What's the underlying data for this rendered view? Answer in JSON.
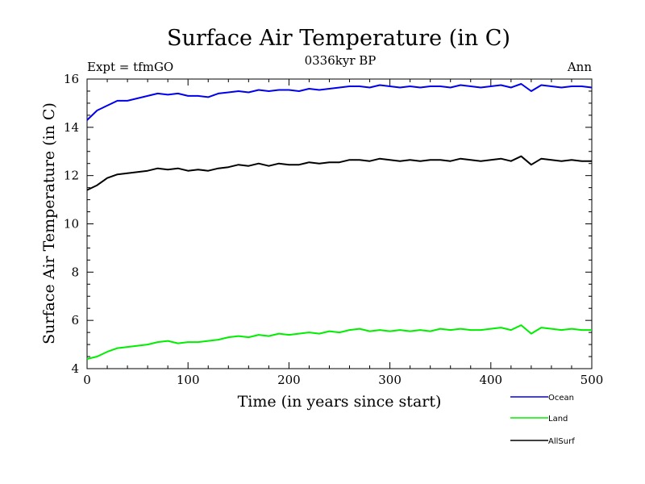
{
  "title": "Surface Air Temperature (in C)",
  "subtitle_left": "Expt = tfmGO",
  "subtitle_center": "0336kyr BP",
  "subtitle_right": "Ann",
  "chart_data": {
    "type": "line",
    "xlabel": "Time (in years since start)",
    "ylabel": "Surface Air Temperature (in C)",
    "xlim": [
      0,
      500
    ],
    "ylim": [
      4,
      16
    ],
    "xticks": [
      0,
      100,
      200,
      300,
      400,
      500
    ],
    "yticks": [
      4,
      6,
      8,
      10,
      12,
      14,
      16
    ],
    "grid": false,
    "legend_position": "bottom-right, below plot",
    "series": [
      {
        "name": "Ocean",
        "color": "#0000ee",
        "x": [
          0,
          10,
          20,
          30,
          40,
          50,
          60,
          70,
          80,
          90,
          100,
          110,
          120,
          130,
          140,
          150,
          160,
          170,
          180,
          190,
          200,
          210,
          220,
          230,
          240,
          250,
          260,
          270,
          280,
          290,
          300,
          310,
          320,
          330,
          340,
          350,
          360,
          370,
          380,
          390,
          400,
          410,
          420,
          430,
          440,
          450,
          460,
          470,
          480,
          490,
          500
        ],
        "y": [
          14.3,
          14.7,
          14.9,
          15.1,
          15.1,
          15.2,
          15.3,
          15.4,
          15.35,
          15.4,
          15.3,
          15.3,
          15.25,
          15.4,
          15.45,
          15.5,
          15.45,
          15.55,
          15.5,
          15.55,
          15.55,
          15.5,
          15.6,
          15.55,
          15.6,
          15.65,
          15.7,
          15.7,
          15.65,
          15.75,
          15.7,
          15.65,
          15.7,
          15.65,
          15.7,
          15.7,
          15.65,
          15.75,
          15.7,
          15.65,
          15.7,
          15.75,
          15.65,
          15.8,
          15.5,
          15.75,
          15.7,
          15.65,
          15.7,
          15.7,
          15.65
        ]
      },
      {
        "name": "Land",
        "color": "#00ee00",
        "x": [
          0,
          10,
          20,
          30,
          40,
          50,
          60,
          70,
          80,
          90,
          100,
          110,
          120,
          130,
          140,
          150,
          160,
          170,
          180,
          190,
          200,
          210,
          220,
          230,
          240,
          250,
          260,
          270,
          280,
          290,
          300,
          310,
          320,
          330,
          340,
          350,
          360,
          370,
          380,
          390,
          400,
          410,
          420,
          430,
          440,
          450,
          460,
          470,
          480,
          490,
          500
        ],
        "y": [
          4.4,
          4.5,
          4.7,
          4.85,
          4.9,
          4.95,
          5.0,
          5.1,
          5.15,
          5.05,
          5.1,
          5.1,
          5.15,
          5.2,
          5.3,
          5.35,
          5.3,
          5.4,
          5.35,
          5.45,
          5.4,
          5.45,
          5.5,
          5.45,
          5.55,
          5.5,
          5.6,
          5.65,
          5.55,
          5.6,
          5.55,
          5.6,
          5.55,
          5.6,
          5.55,
          5.65,
          5.6,
          5.65,
          5.6,
          5.6,
          5.65,
          5.7,
          5.6,
          5.8,
          5.45,
          5.7,
          5.65,
          5.6,
          5.65,
          5.6,
          5.6
        ]
      },
      {
        "name": "AllSurf",
        "color": "#000000",
        "x": [
          0,
          10,
          20,
          30,
          40,
          50,
          60,
          70,
          80,
          90,
          100,
          110,
          120,
          130,
          140,
          150,
          160,
          170,
          180,
          190,
          200,
          210,
          220,
          230,
          240,
          250,
          260,
          270,
          280,
          290,
          300,
          310,
          320,
          330,
          340,
          350,
          360,
          370,
          380,
          390,
          400,
          410,
          420,
          430,
          440,
          450,
          460,
          470,
          480,
          490,
          500
        ],
        "y": [
          11.4,
          11.6,
          11.9,
          12.05,
          12.1,
          12.15,
          12.2,
          12.3,
          12.25,
          12.3,
          12.2,
          12.25,
          12.2,
          12.3,
          12.35,
          12.45,
          12.4,
          12.5,
          12.4,
          12.5,
          12.45,
          12.45,
          12.55,
          12.5,
          12.55,
          12.55,
          12.65,
          12.65,
          12.6,
          12.7,
          12.65,
          12.6,
          12.65,
          12.6,
          12.65,
          12.65,
          12.6,
          12.7,
          12.65,
          12.6,
          12.65,
          12.7,
          12.6,
          12.8,
          12.45,
          12.7,
          12.65,
          12.6,
          12.65,
          12.6,
          12.6
        ]
      }
    ]
  }
}
